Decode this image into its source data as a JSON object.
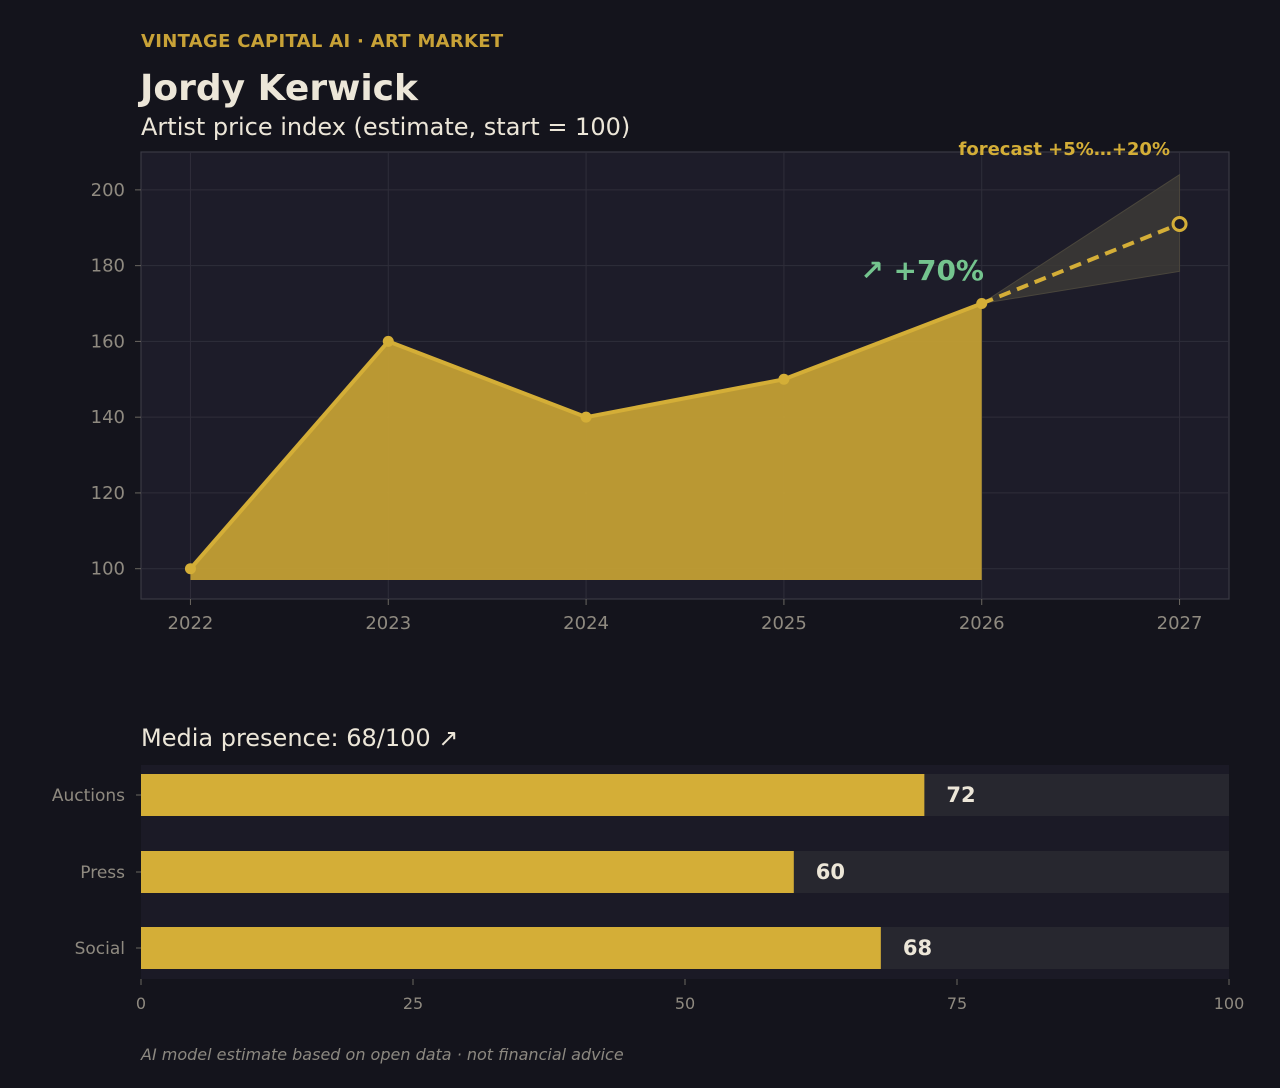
{
  "header": {
    "brand": "VINTAGE CAPITAL AI · ART MARKET",
    "artist_name": "Jordy Kerwick",
    "subtitle": "Artist price index (estimate, start = 100)"
  },
  "chart_data": [
    {
      "type": "area",
      "title": "Artist price index (estimate, start = 100)",
      "x": [
        2022,
        2023,
        2024,
        2025,
        2026
      ],
      "values": [
        100,
        160,
        140,
        150,
        170
      ],
      "forecast": {
        "x": [
          2026,
          2027
        ],
        "values": [
          170,
          191
        ],
        "band_low": 178.5,
        "band_high": 204,
        "label": "forecast +5%…+20%"
      },
      "annotation": "↗ +70%",
      "x_ticks": [
        "2022",
        "2023",
        "2024",
        "2025",
        "2026",
        "2027"
      ],
      "y_ticks": [
        "100",
        "120",
        "140",
        "160",
        "180",
        "200"
      ],
      "xlim": [
        2021.75,
        2027.25
      ],
      "ylim": [
        92,
        210
      ],
      "grid": true,
      "colors": {
        "line": "#d4ae37",
        "fill": "#c39f34",
        "annotation": "#74c48e",
        "forecast_label": "#d4ae37"
      }
    },
    {
      "type": "bar",
      "orientation": "horizontal",
      "title": "Media presence: 68/100 ↗",
      "categories": [
        "Auctions",
        "Press",
        "Social"
      ],
      "values": [
        72,
        60,
        68
      ],
      "value_labels": [
        "72",
        "60",
        "68"
      ],
      "x_ticks": [
        "0",
        "25",
        "50",
        "75",
        "100"
      ],
      "xlim": [
        0,
        100
      ],
      "colors": {
        "bar": "#d4ae37",
        "track": "#27272f"
      }
    }
  ],
  "footnote": "AI model estimate based on open data · not financial advice"
}
